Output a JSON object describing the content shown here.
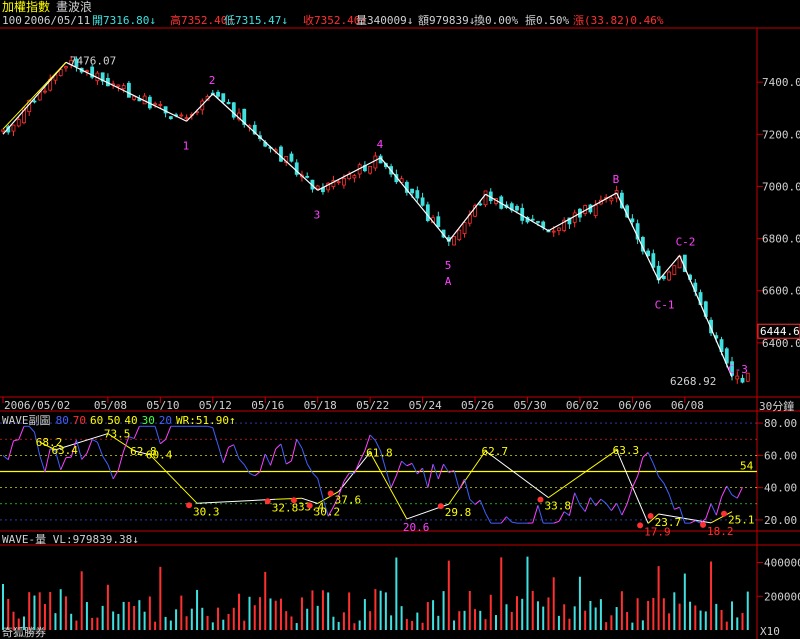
{
  "window": {
    "title": "加權指數",
    "subtitle": "畫波浪",
    "period": "100",
    "date": "2006/05/11",
    "open_label": "開7316.80↓",
    "high_label": "高7352.40↑",
    "low_label": "低7315.47↓",
    "close_label": "收7352.40↑",
    "volume_label": "量340009↓",
    "amount_label": "額979839↓",
    "turnover_label": "換0.00%",
    "amplitude_label": "振0.50%",
    "change_label": "漲(33.82)0.46%",
    "interval": "30分鐘",
    "broker": "奇狐勝券",
    "scale_label": "X10"
  },
  "colors": {
    "up": "#ff3030",
    "down": "#40e0e0",
    "wave": "#ffffff",
    "wave_alt": "#ff40ff",
    "ma": "#ffff00",
    "axis": "#c00000",
    "label": "#d0d0d0"
  },
  "chart_data": [
    {
      "type": "line",
      "name": "price",
      "ylim": [
        6200,
        7600
      ],
      "y_ticks": [
        6400,
        6600,
        6800,
        7000,
        7200,
        7400
      ],
      "y_tick_labels": [
        "6400.0",
        "6600.0",
        "6800.0",
        "7000.0",
        "7200.0",
        "7400.0"
      ],
      "x_ticks": [
        "2006/05/02",
        "05/08",
        "05/10",
        "05/12",
        "05/16",
        "05/18",
        "05/22",
        "05/24",
        "05/26",
        "05/30",
        "06/02",
        "06/06",
        "06/08"
      ],
      "last_price_label": "6444.6",
      "annotations": [
        {
          "text": "7476.07",
          "x": 12,
          "y": 7476
        },
        {
          "text": "6268.92",
          "x": 139,
          "y": 6269
        }
      ],
      "wave_labels": [
        {
          "text": "1",
          "x": 35,
          "y": 7250
        },
        {
          "text": "2",
          "x": 40,
          "y": 7355
        },
        {
          "text": "3",
          "x": 60,
          "y": 6985
        },
        {
          "text": "4",
          "x": 72,
          "y": 7110
        },
        {
          "text": "5",
          "x": 85,
          "y": 6790
        },
        {
          "text": "A",
          "x": 85,
          "y": 6790
        },
        {
          "text": "B",
          "x": 117,
          "y": 6975
        },
        {
          "text": "C-1",
          "x": 125,
          "y": 6640
        },
        {
          "text": "C-2",
          "x": 129,
          "y": 6735
        },
        {
          "text": "C-3",
          "x": 139,
          "y": 6269
        }
      ],
      "wave_points": [
        {
          "x": 0,
          "y": 7200
        },
        {
          "x": 12,
          "y": 7476
        },
        {
          "x": 35,
          "y": 7250
        },
        {
          "x": 40,
          "y": 7355
        },
        {
          "x": 60,
          "y": 6985
        },
        {
          "x": 72,
          "y": 7110
        },
        {
          "x": 85,
          "y": 6790
        },
        {
          "x": 92,
          "y": 6970
        },
        {
          "x": 104,
          "y": 6830
        },
        {
          "x": 117,
          "y": 6975
        },
        {
          "x": 125,
          "y": 6640
        },
        {
          "x": 129,
          "y": 6735
        },
        {
          "x": 139,
          "y": 6269
        }
      ],
      "x_count": 143
    },
    {
      "type": "line",
      "name": "WAVE副圖",
      "legend": [
        "WAVE副圖",
        "80",
        "70",
        "60",
        "50",
        "40",
        "30",
        "20",
        "WR:51.90↑"
      ],
      "legend_colors": [
        "#d0d0d0",
        "#4060ff",
        "#ff3030",
        "#ffff00",
        "#ffff00",
        "#ffff00",
        "#40ff40",
        "#4060ff",
        "#ffff00"
      ],
      "ylim": [
        15,
        85
      ],
      "y_ticks": [
        20,
        40,
        60,
        80
      ],
      "y_tick_labels": [
        "20.00",
        "40.00",
        "60.00",
        "80.00"
      ],
      "level_label": "54",
      "level": 50,
      "value_labels": [
        {
          "text": "68.2",
          "x": 7,
          "y": 68.2
        },
        {
          "text": "63.4",
          "x": 10,
          "y": 63.4
        },
        {
          "text": "73.5",
          "x": 20,
          "y": 73.5
        },
        {
          "text": "62.8",
          "x": 25,
          "y": 62.8
        },
        {
          "text": "60.4",
          "x": 28,
          "y": 60.4
        },
        {
          "text": "30.3",
          "x": 37,
          "y": 30.3
        },
        {
          "text": "32.8",
          "x": 52,
          "y": 32.8
        },
        {
          "text": "33.4",
          "x": 57,
          "y": 33.4
        },
        {
          "text": "30.2",
          "x": 60,
          "y": 30.2
        },
        {
          "text": "37.6",
          "x": 64,
          "y": 37.6
        },
        {
          "text": "61.8",
          "x": 70,
          "y": 61.8
        },
        {
          "text": "20.6",
          "x": 77,
          "y": 20.6
        },
        {
          "text": "29.8",
          "x": 85,
          "y": 29.8
        },
        {
          "text": "62.7",
          "x": 92,
          "y": 62.7
        },
        {
          "text": "33.8",
          "x": 104,
          "y": 33.8
        },
        {
          "text": "63.3",
          "x": 117,
          "y": 63.3
        },
        {
          "text": "23.7",
          "x": 125,
          "y": 23.7
        },
        {
          "text": "17.9",
          "x": 123,
          "y": 17.9
        },
        {
          "text": "18.2",
          "x": 135,
          "y": 18.2
        },
        {
          "text": "25.1",
          "x": 139,
          "y": 25.1
        }
      ]
    },
    {
      "type": "bar",
      "name": "WAVE-量",
      "legend": "WAVE-量 VL:979839.38↓",
      "ylim": [
        0,
        480000
      ],
      "y_ticks": [
        200000,
        400000
      ],
      "y_tick_labels": [
        "200000",
        "400000"
      ]
    }
  ]
}
